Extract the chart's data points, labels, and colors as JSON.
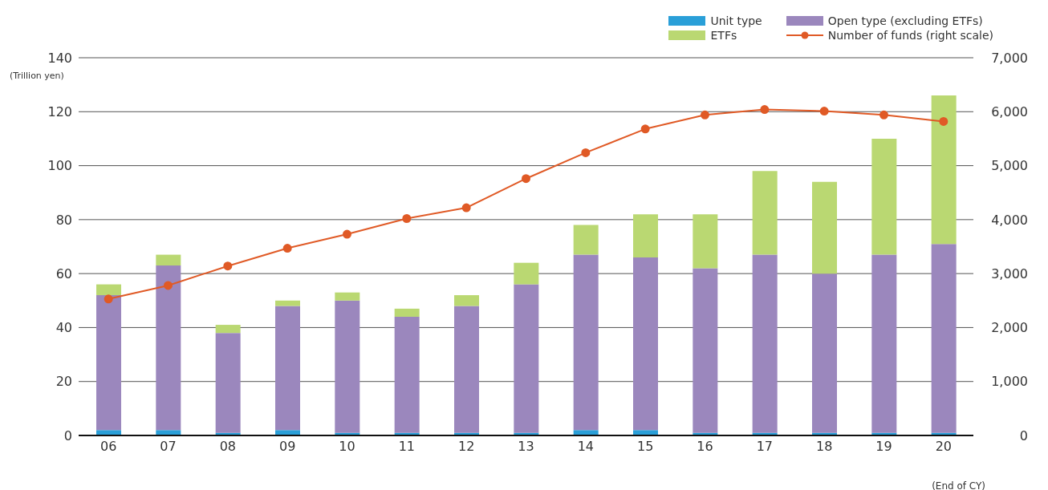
{
  "chart_data": {
    "type": "bar",
    "stacked": true,
    "xlabel": "(End of CY)",
    "ylabel": "(Trillion yen)",
    "categories": [
      "06",
      "07",
      "08",
      "09",
      "10",
      "11",
      "12",
      "13",
      "14",
      "15",
      "16",
      "17",
      "18",
      "19",
      "20"
    ],
    "series": [
      {
        "name": "Unit type",
        "color": "#2a9fd8",
        "values": [
          2,
          2,
          1,
          2,
          1,
          1,
          1,
          1,
          2,
          2,
          1,
          1,
          1,
          1,
          1
        ]
      },
      {
        "name": "Open type (excluding ETFs)",
        "color": "#9b87bd",
        "values": [
          50,
          61,
          37,
          46,
          49,
          43,
          47,
          55,
          65,
          64,
          61,
          66,
          59,
          66,
          70
        ]
      },
      {
        "name": "ETFs",
        "color": "#bad872",
        "values": [
          4,
          4,
          3,
          2,
          3,
          3,
          4,
          8,
          11,
          16,
          20,
          31,
          34,
          43,
          55
        ]
      },
      {
        "name": "Number of funds (right scale)",
        "type": "line",
        "axis": "y2",
        "color": "#e05a26",
        "marker": "circle",
        "values": [
          2530,
          2780,
          3140,
          3470,
          3730,
          4020,
          4220,
          4760,
          5240,
          5680,
          5940,
          6040,
          6010,
          5940,
          5820
        ]
      }
    ],
    "ylim": [
      0,
      140
    ],
    "yticks": [
      0,
      20,
      40,
      60,
      80,
      100,
      120,
      140
    ],
    "y2lim": [
      0,
      7000
    ],
    "y2ticks": [
      0,
      {
        "value": 1000,
        "label": "1,000"
      },
      {
        "value": 2000,
        "label": "2,000"
      },
      {
        "value": 3000,
        "label": "3,000"
      },
      {
        "value": 4000,
        "label": "4,000"
      },
      {
        "value": 5000,
        "label": "5,000"
      },
      {
        "value": 6000,
        "label": "6,000"
      },
      {
        "value": 7000,
        "label": "7,000"
      }
    ],
    "grid": "y",
    "legend": "top right"
  }
}
